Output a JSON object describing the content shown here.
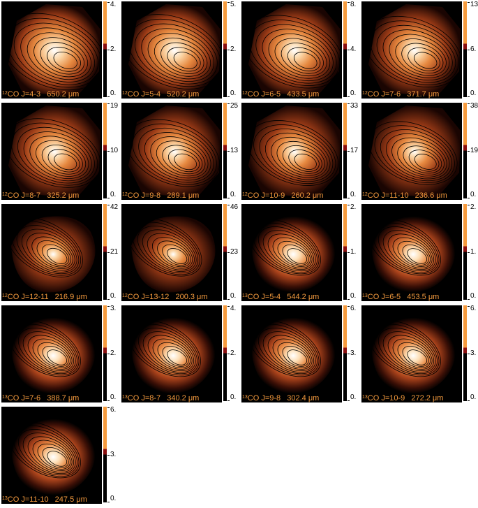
{
  "panels": [
    {
      "iso": "12",
      "line": "CO J=4-3",
      "wl": "650.2",
      "unit": "μm",
      "max": "4.",
      "mid": "2.",
      "min": "0."
    },
    {
      "iso": "12",
      "line": "CO J=5-4",
      "wl": "520.2",
      "unit": "μm",
      "max": "5.",
      "mid": "2.",
      "min": "0."
    },
    {
      "iso": "12",
      "line": "CO J=6-5",
      "wl": "433.5",
      "unit": "μm",
      "max": "8.",
      "mid": "4.",
      "min": "0."
    },
    {
      "iso": "12",
      "line": "CO J=7-6",
      "wl": "371.7",
      "unit": "μm",
      "max": "13",
      "mid": "6.",
      "min": "0."
    },
    {
      "iso": "12",
      "line": "CO J=8-7",
      "wl": "325.2",
      "unit": "μm",
      "max": "19",
      "mid": "10",
      "min": "0."
    },
    {
      "iso": "12",
      "line": "CO J=9-8",
      "wl": "289.1",
      "unit": "μm",
      "max": "25",
      "mid": "13",
      "min": "0."
    },
    {
      "iso": "12",
      "line": "CO J=10-9",
      "wl": "260.2",
      "unit": "μm",
      "max": "33",
      "mid": "17",
      "min": "0."
    },
    {
      "iso": "12",
      "line": "CO J=11-10",
      "wl": "236.6",
      "unit": "μm",
      "max": "38",
      "mid": "19",
      "min": "0."
    },
    {
      "iso": "12",
      "line": "CO J=12-11",
      "wl": "216.9",
      "unit": "μm",
      "max": "42",
      "mid": "21",
      "min": "0."
    },
    {
      "iso": "12",
      "line": "CO J=13-12",
      "wl": "200.3",
      "unit": "μm",
      "max": "46",
      "mid": "23",
      "min": "0."
    },
    {
      "iso": "13",
      "line": "CO J=5-4",
      "wl": "544.2",
      "unit": "μm",
      "max": "2.",
      "mid": "1.",
      "min": "0."
    },
    {
      "iso": "13",
      "line": "CO J=6-5",
      "wl": "453.5",
      "unit": "μm",
      "max": "2.",
      "mid": "1.",
      "min": "0."
    },
    {
      "iso": "13",
      "line": "CO J=7-6",
      "wl": "388.7",
      "unit": "μm",
      "max": "3.",
      "mid": "2.",
      "min": "0."
    },
    {
      "iso": "13",
      "line": "CO J=8-7",
      "wl": "340.2",
      "unit": "μm",
      "max": "4.",
      "mid": "2.",
      "min": "0."
    },
    {
      "iso": "13",
      "line": "CO J=9-8",
      "wl": "302.4",
      "unit": "μm",
      "max": "6.",
      "mid": "3.",
      "min": "0."
    },
    {
      "iso": "13",
      "line": "CO J=10-9",
      "wl": "272.2",
      "unit": "μm",
      "max": "6.",
      "mid": "3.",
      "min": "0."
    },
    {
      "iso": "13",
      "line": "CO J=11-10",
      "wl": "247.5",
      "unit": "μm",
      "max": "6.",
      "mid": "3.",
      "min": "0."
    }
  ],
  "colors": {
    "label": "#f59b3e",
    "cbar_top": "#f59b3e",
    "cbar_mid": "#8b0f0f",
    "cbar_bottom": "#000000"
  }
}
